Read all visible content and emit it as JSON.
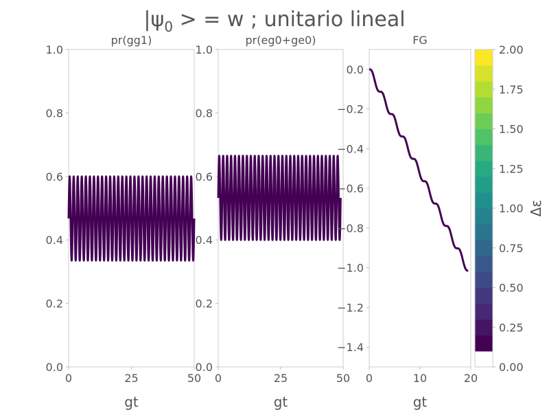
{
  "title_prefix": "|ψ",
  "title_sub": "0",
  "title_suffix": " > = w ; unitario lineal",
  "chart_data": [
    {
      "type": "line",
      "title": "pr(gg1)",
      "xlabel": "gt",
      "ylabel": "",
      "xlim": [
        0,
        50
      ],
      "ylim": [
        0,
        1
      ],
      "xticks": [
        0,
        25,
        50
      ],
      "yticks": [
        0.0,
        0.2,
        0.4,
        0.6,
        0.8,
        1.0
      ],
      "xtick_labels": [
        "0",
        "25",
        "50"
      ],
      "ytick_labels": [
        "0.0",
        "0.2",
        "0.4",
        "0.6",
        "0.8",
        "1.0"
      ],
      "series": [
        {
          "kind": "oscillation",
          "x_range": [
            0,
            50
          ],
          "min": 0.335,
          "max": 0.6,
          "cycles": 31,
          "start": "mid",
          "color": "#440154"
        }
      ]
    },
    {
      "type": "line",
      "title": "pr(eg0+ge0)",
      "xlabel": "gt",
      "ylabel": "",
      "xlim": [
        0,
        50
      ],
      "ylim": [
        0,
        1
      ],
      "xticks": [
        0,
        25,
        50
      ],
      "yticks": [
        0.0,
        0.2,
        0.4,
        0.6,
        0.8,
        1.0
      ],
      "xtick_labels": [
        "0",
        "25",
        "50"
      ],
      "ytick_labels": [
        "0.0",
        "0.2",
        "0.4",
        "0.6",
        "0.8",
        "1.0"
      ],
      "series": [
        {
          "kind": "oscillation",
          "x_range": [
            0,
            49
          ],
          "min": 0.4,
          "max": 0.665,
          "cycles": 31,
          "start": "mid",
          "color": "#440154"
        }
      ]
    },
    {
      "type": "line",
      "title": "FG",
      "xlabel": "gt",
      "ylabel": "",
      "xlim": [
        0,
        20
      ],
      "ylim": [
        -1.5,
        0.1
      ],
      "xticks": [
        0,
        10,
        20
      ],
      "yticks": [
        0.0,
        -0.2,
        -0.4,
        -0.6,
        -0.8,
        -1.0,
        -1.2,
        -1.4
      ],
      "xtick_labels": [
        "0",
        "10",
        "20"
      ],
      "ytick_labels": [
        "0.0",
        "−0.2",
        "−0.4",
        "−0.6",
        "−0.8",
        "−1.0",
        "−1.2",
        "−1.4"
      ],
      "series": [
        {
          "kind": "staircase",
          "x_range": [
            0,
            19.5
          ],
          "start": 0.0,
          "end": -1.015,
          "steps": 9,
          "color": "#440154"
        }
      ]
    }
  ],
  "colorbar": {
    "label": "Δε",
    "range": [
      0,
      2
    ],
    "filled_range": [
      0.1,
      2.0
    ],
    "ticks": [
      0.0,
      0.25,
      0.5,
      0.75,
      1.0,
      1.25,
      1.5,
      1.75,
      2.0
    ],
    "tick_labels": [
      "0.00",
      "0.25",
      "0.50",
      "0.75",
      "1.00",
      "1.25",
      "1.50",
      "1.75",
      "2.00"
    ],
    "colormap": "viridis",
    "levels": 19
  }
}
